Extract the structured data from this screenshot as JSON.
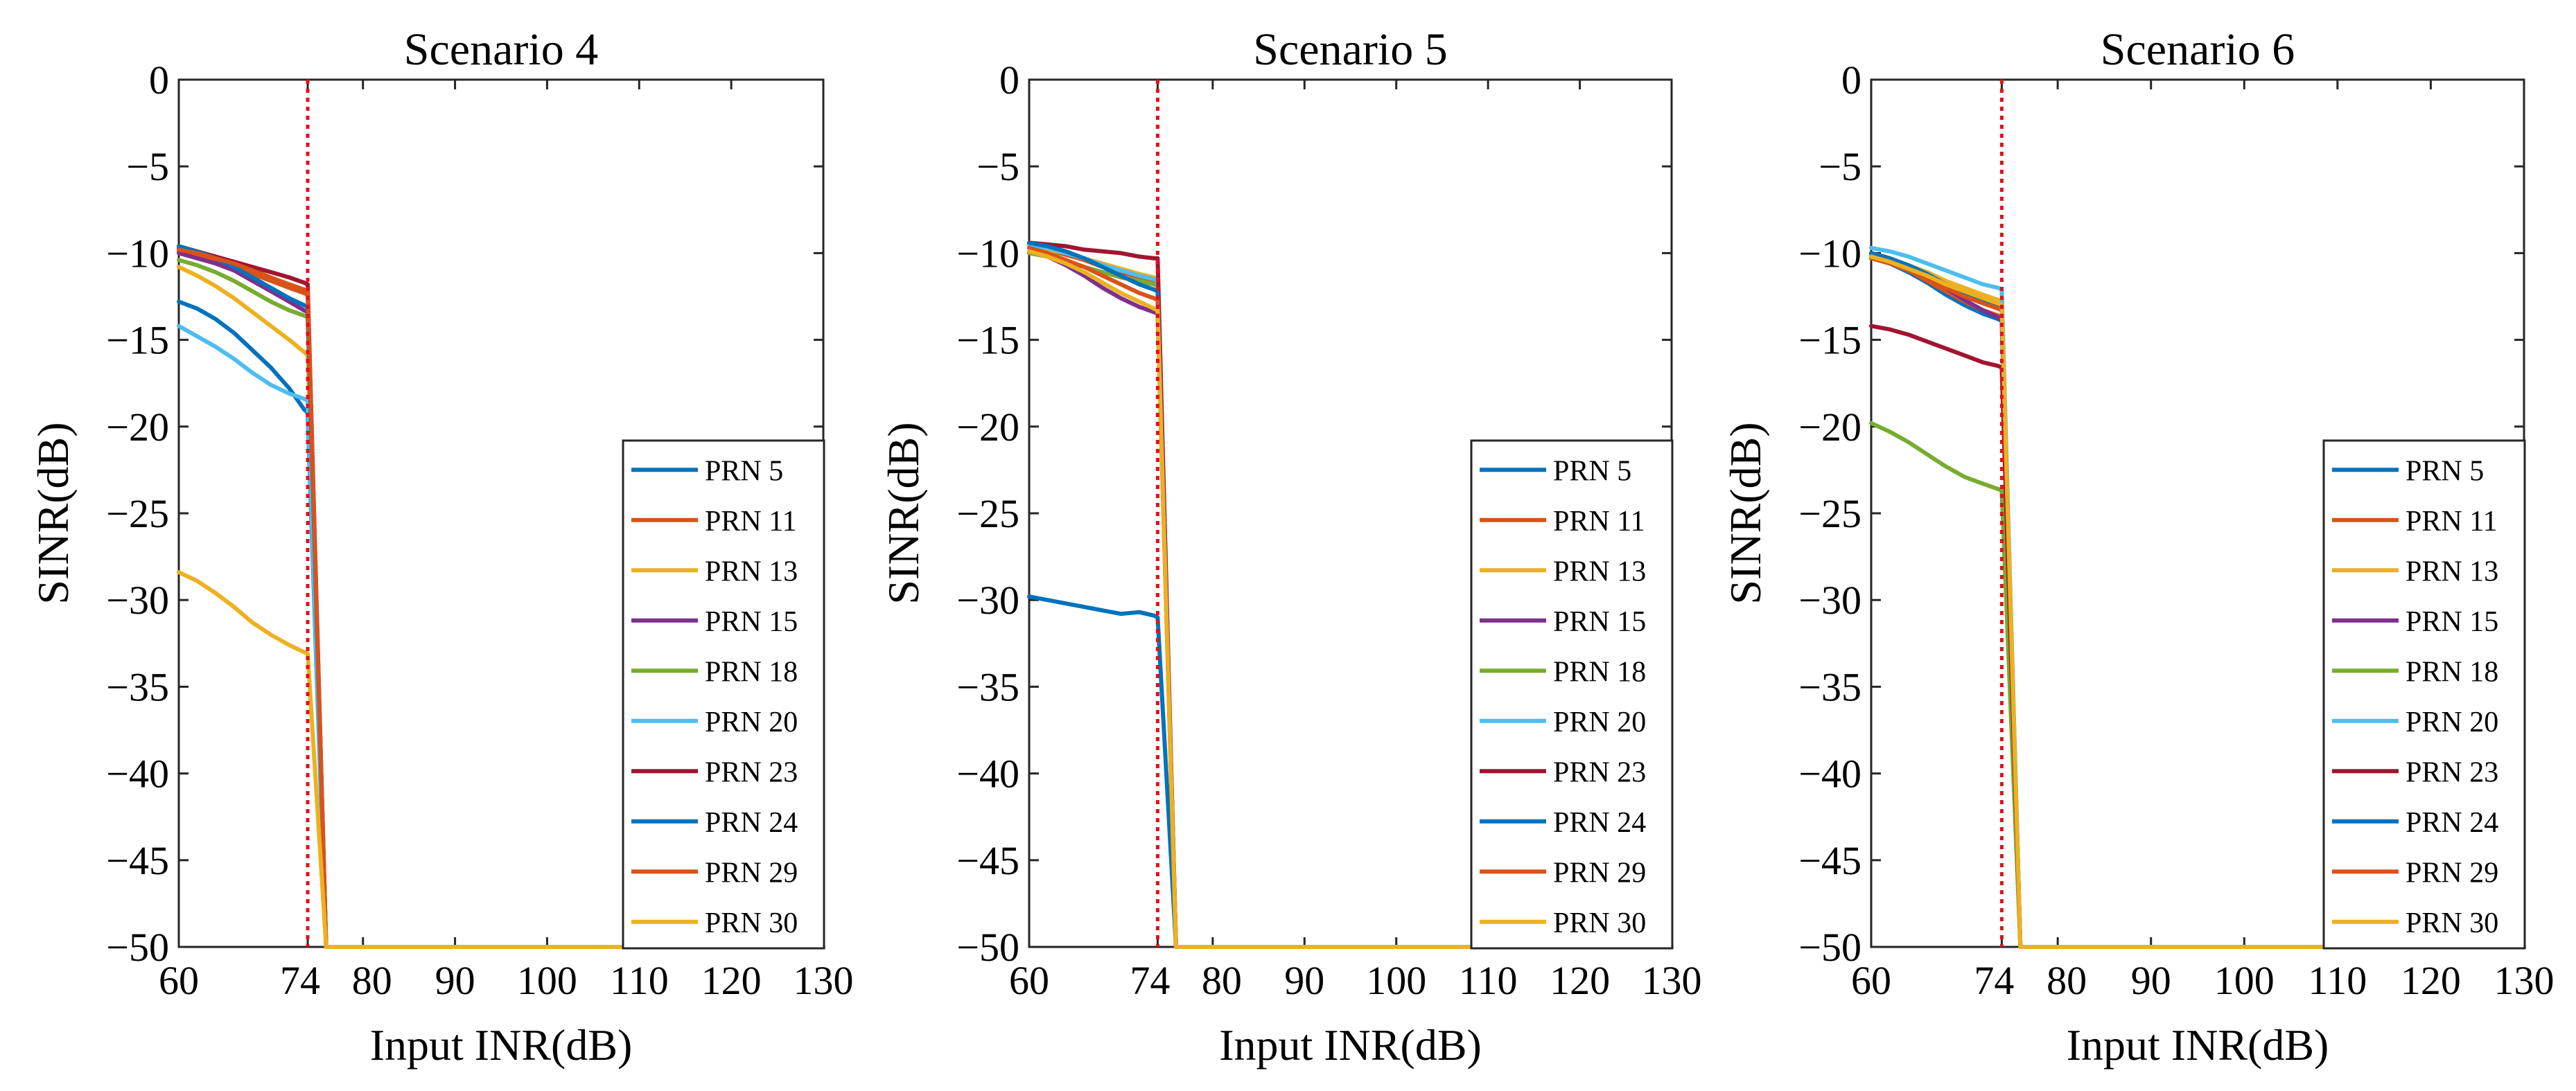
{
  "figure": {
    "layout": "three-panel"
  },
  "chart_data": [
    {
      "type": "line",
      "title": "Scenario 4",
      "xlabel": "Input INR(dB)",
      "ylabel": "SINR(dB)",
      "xlim": [
        60,
        130
      ],
      "ylim": [
        -50,
        0
      ],
      "xticks": [
        60,
        74,
        80,
        90,
        100,
        110,
        120,
        130
      ],
      "yticks": [
        0,
        -5,
        -10,
        -15,
        -20,
        -25,
        -30,
        -35,
        -40,
        -45,
        -50
      ],
      "xtick_labels": [
        "60",
        "74",
        "80",
        "90",
        "100",
        "110",
        "120",
        "130"
      ],
      "ytick_labels": [
        "0",
        "−5",
        "−10",
        "−15",
        "−20",
        "−25",
        "−30",
        "−35",
        "−40",
        "−45",
        "−50"
      ],
      "vline": {
        "x": 74,
        "color": "#e3111c",
        "style": "dotted"
      },
      "grid": false,
      "legend": "bottom-right",
      "series": [
        {
          "name": "PRN 5",
          "color": "#0072bd",
          "x": [
            60,
            62,
            64,
            66,
            68,
            70,
            72,
            73.6,
            74,
            76,
            130
          ],
          "y": [
            -12.8,
            -13.2,
            -13.8,
            -14.6,
            -15.6,
            -16.6,
            -17.8,
            -19.0,
            -19.2,
            -50,
            -50
          ]
        },
        {
          "name": "PRN 11",
          "color": "#d95319",
          "x": [
            60,
            62,
            64,
            66,
            68,
            70,
            72,
            73.6,
            74,
            76,
            130
          ],
          "y": [
            -9.9,
            -10.1,
            -10.4,
            -10.8,
            -11.2,
            -11.6,
            -12.0,
            -12.3,
            -12.4,
            -50,
            -50
          ]
        },
        {
          "name": "PRN 13",
          "color": "#edb120",
          "x": [
            60,
            62,
            64,
            66,
            68,
            70,
            72,
            73.6,
            74,
            76,
            130
          ],
          "y": [
            -10.8,
            -11.3,
            -11.9,
            -12.6,
            -13.4,
            -14.2,
            -15.0,
            -15.7,
            -15.9,
            -50,
            -50
          ]
        },
        {
          "name": "PRN 15",
          "color": "#7e2f8e",
          "x": [
            60,
            62,
            64,
            66,
            68,
            70,
            72,
            73.6,
            74,
            76,
            130
          ],
          "y": [
            -10.0,
            -10.3,
            -10.6,
            -11.0,
            -11.6,
            -12.2,
            -12.8,
            -13.3,
            -13.4,
            -50,
            -50
          ]
        },
        {
          "name": "PRN 18",
          "color": "#77ac30",
          "x": [
            60,
            62,
            64,
            66,
            68,
            70,
            72,
            73.6,
            74,
            76,
            130
          ],
          "y": [
            -10.4,
            -10.7,
            -11.1,
            -11.6,
            -12.2,
            -12.8,
            -13.3,
            -13.6,
            -13.7,
            -50,
            -50
          ]
        },
        {
          "name": "PRN 20",
          "color": "#4dbeee",
          "x": [
            60,
            62,
            64,
            66,
            68,
            70,
            72,
            73.6,
            74,
            76,
            130
          ],
          "y": [
            -14.2,
            -14.8,
            -15.4,
            -16.1,
            -16.9,
            -17.6,
            -18.1,
            -18.4,
            -18.5,
            -50,
            -50
          ]
        },
        {
          "name": "PRN 23",
          "color": "#a2142f",
          "x": [
            60,
            62,
            64,
            66,
            68,
            70,
            72,
            73.6,
            74,
            76,
            130
          ],
          "y": [
            -9.7,
            -9.9,
            -10.2,
            -10.5,
            -10.8,
            -11.1,
            -11.4,
            -11.7,
            -11.8,
            -50,
            -50
          ]
        },
        {
          "name": "PRN 24",
          "color": "#0072bd",
          "x": [
            60,
            62,
            64,
            66,
            68,
            70,
            72,
            73.6,
            74,
            76,
            130
          ],
          "y": [
            -9.6,
            -9.9,
            -10.3,
            -10.8,
            -11.4,
            -12.0,
            -12.6,
            -13.0,
            -13.1,
            -50,
            -50
          ]
        },
        {
          "name": "PRN 29",
          "color": "#d95319",
          "x": [
            60,
            62,
            64,
            66,
            68,
            70,
            72,
            73.6,
            74,
            76,
            130
          ],
          "y": [
            -9.8,
            -10.0,
            -10.3,
            -10.6,
            -11.0,
            -11.4,
            -11.8,
            -12.1,
            -12.2,
            -50,
            -50
          ]
        },
        {
          "name": "PRN 30",
          "color": "#edb120",
          "x": [
            60,
            62,
            64,
            66,
            68,
            70,
            72,
            73.6,
            74,
            76,
            130
          ],
          "y": [
            -28.4,
            -28.9,
            -29.6,
            -30.4,
            -31.3,
            -32.0,
            -32.6,
            -33.0,
            -33.1,
            -50,
            -50
          ]
        }
      ]
    },
    {
      "type": "line",
      "title": "Scenario 5",
      "xlabel": "Input INR(dB)",
      "ylabel": "SINR(dB)",
      "xlim": [
        60,
        130
      ],
      "ylim": [
        -50,
        0
      ],
      "xticks": [
        60,
        74,
        80,
        90,
        100,
        110,
        120,
        130
      ],
      "yticks": [
        0,
        -5,
        -10,
        -15,
        -20,
        -25,
        -30,
        -35,
        -40,
        -45,
        -50
      ],
      "xtick_labels": [
        "60",
        "74",
        "80",
        "90",
        "100",
        "110",
        "120",
        "130"
      ],
      "ytick_labels": [
        "0",
        "−5",
        "−10",
        "−15",
        "−20",
        "−25",
        "−30",
        "−35",
        "−40",
        "−45",
        "−50"
      ],
      "vline": {
        "x": 74,
        "color": "#e3111c",
        "style": "dotted"
      },
      "grid": false,
      "legend": "bottom-right",
      "series": [
        {
          "name": "PRN 5",
          "color": "#0072bd",
          "x": [
            60,
            62,
            64,
            66,
            68,
            70,
            72,
            73.6,
            74,
            76,
            130
          ],
          "y": [
            -29.8,
            -30.0,
            -30.2,
            -30.4,
            -30.6,
            -30.8,
            -30.7,
            -30.9,
            -31.0,
            -50,
            -50
          ]
        },
        {
          "name": "PRN 11",
          "color": "#d95319",
          "x": [
            60,
            62,
            64,
            66,
            68,
            70,
            72,
            73.6,
            74,
            76,
            130
          ],
          "y": [
            -9.6,
            -9.8,
            -10.1,
            -10.4,
            -10.8,
            -11.1,
            -11.4,
            -11.6,
            -11.7,
            -50,
            -50
          ]
        },
        {
          "name": "PRN 13",
          "color": "#edb120",
          "x": [
            60,
            62,
            64,
            66,
            68,
            70,
            72,
            73.6,
            74,
            76,
            130
          ],
          "y": [
            -9.6,
            -9.8,
            -10.0,
            -10.3,
            -10.6,
            -10.9,
            -11.2,
            -11.4,
            -11.5,
            -50,
            -50
          ]
        },
        {
          "name": "PRN 15",
          "color": "#7e2f8e",
          "x": [
            60,
            62,
            64,
            66,
            68,
            70,
            72,
            73.6,
            74,
            76,
            130
          ],
          "y": [
            -9.9,
            -10.2,
            -10.7,
            -11.3,
            -12.0,
            -12.6,
            -13.1,
            -13.4,
            -13.5,
            -50,
            -50
          ]
        },
        {
          "name": "PRN 18",
          "color": "#77ac30",
          "x": [
            60,
            62,
            64,
            66,
            68,
            70,
            72,
            73.6,
            74,
            76,
            130
          ],
          "y": [
            -10.0,
            -10.2,
            -10.5,
            -10.8,
            -11.1,
            -11.4,
            -11.6,
            -11.8,
            -11.9,
            -50,
            -50
          ]
        },
        {
          "name": "PRN 20",
          "color": "#4dbeee",
          "x": [
            60,
            62,
            64,
            66,
            68,
            70,
            72,
            73.6,
            74,
            76,
            130
          ],
          "y": [
            -9.5,
            -9.7,
            -10.0,
            -10.3,
            -10.7,
            -11.0,
            -11.3,
            -11.5,
            -11.6,
            -50,
            -50
          ]
        },
        {
          "name": "PRN 23",
          "color": "#a2142f",
          "x": [
            60,
            62,
            64,
            66,
            68,
            70,
            72,
            73.6,
            74,
            76,
            130
          ],
          "y": [
            -9.4,
            -9.5,
            -9.6,
            -9.8,
            -9.9,
            -10.0,
            -10.2,
            -10.3,
            -10.3,
            -50,
            -50
          ]
        },
        {
          "name": "PRN 24",
          "color": "#0072bd",
          "x": [
            60,
            62,
            64,
            66,
            68,
            70,
            72,
            73.6,
            74,
            76,
            130
          ],
          "y": [
            -9.4,
            -9.6,
            -9.9,
            -10.3,
            -10.8,
            -11.3,
            -11.8,
            -12.1,
            -12.2,
            -50,
            -50
          ]
        },
        {
          "name": "PRN 29",
          "color": "#d95319",
          "x": [
            60,
            62,
            64,
            66,
            68,
            70,
            72,
            73.6,
            74,
            76,
            130
          ],
          "y": [
            -9.7,
            -10.0,
            -10.4,
            -10.8,
            -11.3,
            -11.8,
            -12.3,
            -12.6,
            -12.7,
            -50,
            -50
          ]
        },
        {
          "name": "PRN 30",
          "color": "#edb120",
          "x": [
            60,
            62,
            64,
            66,
            68,
            70,
            72,
            73.6,
            74,
            76,
            130
          ],
          "y": [
            -9.9,
            -10.2,
            -10.6,
            -11.1,
            -11.7,
            -12.3,
            -12.8,
            -13.2,
            -13.3,
            -50,
            -50
          ]
        }
      ]
    },
    {
      "type": "line",
      "title": "Scenario 6",
      "xlabel": "Input INR(dB)",
      "ylabel": "SINR(dB)",
      "xlim": [
        60,
        130
      ],
      "ylim": [
        -50,
        0
      ],
      "xticks": [
        60,
        74,
        80,
        90,
        100,
        110,
        120,
        130
      ],
      "yticks": [
        0,
        -5,
        -10,
        -15,
        -20,
        -25,
        -30,
        -35,
        -40,
        -45,
        -50
      ],
      "xtick_labels": [
        "60",
        "74",
        "80",
        "90",
        "100",
        "110",
        "120",
        "130"
      ],
      "ytick_labels": [
        "0",
        "−5",
        "−10",
        "−15",
        "−20",
        "−25",
        "−30",
        "−35",
        "−40",
        "−45",
        "−50"
      ],
      "vline": {
        "x": 74,
        "color": "#e3111c",
        "style": "dotted"
      },
      "grid": false,
      "legend": "bottom-right",
      "series": [
        {
          "name": "PRN 5",
          "color": "#0072bd",
          "x": [
            60,
            62,
            64,
            66,
            68,
            70,
            72,
            73.6,
            74,
            76,
            130
          ],
          "y": [
            -10.2,
            -10.6,
            -11.1,
            -11.7,
            -12.4,
            -13.0,
            -13.5,
            -13.8,
            -13.9,
            -50,
            -50
          ]
        },
        {
          "name": "PRN 11",
          "color": "#d95319",
          "x": [
            60,
            62,
            64,
            66,
            68,
            70,
            72,
            73.6,
            74,
            76,
            130
          ],
          "y": [
            -10.1,
            -10.5,
            -11.0,
            -11.6,
            -12.2,
            -12.8,
            -13.3,
            -13.6,
            -13.7,
            -50,
            -50
          ]
        },
        {
          "name": "PRN 13",
          "color": "#edb120",
          "x": [
            60,
            62,
            64,
            66,
            68,
            70,
            72,
            73.6,
            74,
            76,
            130
          ],
          "y": [
            -10.0,
            -10.3,
            -10.7,
            -11.1,
            -11.6,
            -12.0,
            -12.4,
            -12.7,
            -12.8,
            -50,
            -50
          ]
        },
        {
          "name": "PRN 15",
          "color": "#7e2f8e",
          "x": [
            60,
            62,
            64,
            66,
            68,
            70,
            72,
            73.6,
            74,
            76,
            130
          ],
          "y": [
            -10.0,
            -10.3,
            -10.8,
            -11.4,
            -12.0,
            -12.7,
            -13.3,
            -13.7,
            -13.8,
            -50,
            -50
          ]
        },
        {
          "name": "PRN 18",
          "color": "#77ac30",
          "x": [
            60,
            62,
            64,
            66,
            68,
            70,
            72,
            73.6,
            74,
            76,
            130
          ],
          "y": [
            -19.8,
            -20.3,
            -20.9,
            -21.6,
            -22.3,
            -22.9,
            -23.3,
            -23.6,
            -23.7,
            -50,
            -50
          ]
        },
        {
          "name": "PRN 20",
          "color": "#4dbeee",
          "x": [
            60,
            62,
            64,
            66,
            68,
            70,
            72,
            73.6,
            74,
            76,
            130
          ],
          "y": [
            -9.7,
            -9.9,
            -10.2,
            -10.6,
            -11.0,
            -11.4,
            -11.8,
            -12.0,
            -12.1,
            -50,
            -50
          ]
        },
        {
          "name": "PRN 23",
          "color": "#a2142f",
          "x": [
            60,
            62,
            64,
            66,
            68,
            70,
            72,
            73.6,
            74,
            76,
            130
          ],
          "y": [
            -14.2,
            -14.4,
            -14.7,
            -15.1,
            -15.5,
            -15.9,
            -16.3,
            -16.5,
            -16.6,
            -50,
            -50
          ]
        },
        {
          "name": "PRN 24",
          "color": "#0072bd",
          "x": [
            60,
            62,
            64,
            66,
            68,
            70,
            72,
            73.6,
            74,
            76,
            130
          ],
          "y": [
            -10.0,
            -10.3,
            -10.7,
            -11.2,
            -11.8,
            -12.3,
            -12.8,
            -13.1,
            -13.2,
            -50,
            -50
          ]
        },
        {
          "name": "PRN 29",
          "color": "#d95319",
          "x": [
            60,
            62,
            64,
            66,
            68,
            70,
            72,
            73.6,
            74,
            76,
            130
          ],
          "y": [
            -10.3,
            -10.6,
            -11.0,
            -11.5,
            -12.0,
            -12.5,
            -12.9,
            -13.2,
            -13.3,
            -50,
            -50
          ]
        },
        {
          "name": "PRN 30",
          "color": "#edb120",
          "x": [
            60,
            62,
            64,
            66,
            68,
            70,
            72,
            73.6,
            74,
            76,
            130
          ],
          "y": [
            -10.2,
            -10.5,
            -10.9,
            -11.3,
            -11.8,
            -12.2,
            -12.6,
            -12.9,
            -13.0,
            -50,
            -50
          ]
        }
      ]
    }
  ]
}
